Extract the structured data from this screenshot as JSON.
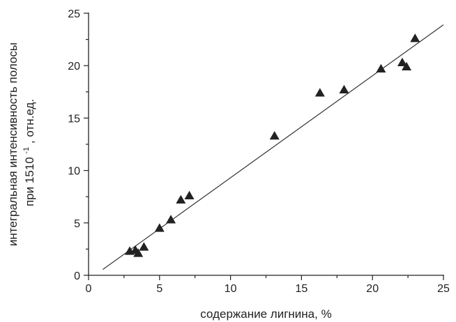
{
  "chart_data": {
    "type": "scatter",
    "xlabel": "содержание лигнина, %",
    "ylabel_line1": "интегральная интенсивность полосы",
    "ylabel_line2_prefix": "при 1510",
    "ylabel_line2_sup": "-1",
    "ylabel_line2_suffix": ", отн.ед.",
    "xlim": [
      0,
      25
    ],
    "ylim": [
      0,
      25
    ],
    "xticks": [
      "0",
      "5",
      "10",
      "15",
      "20",
      "25"
    ],
    "yticks": [
      "0",
      "5",
      "10",
      "15",
      "20",
      "25"
    ],
    "grid": false,
    "marker": "triangle",
    "marker_color": "#222222",
    "points": [
      {
        "x": 2.9,
        "y": 2.3
      },
      {
        "x": 3.3,
        "y": 2.4
      },
      {
        "x": 3.5,
        "y": 2.1
      },
      {
        "x": 3.9,
        "y": 2.7
      },
      {
        "x": 5.0,
        "y": 4.5
      },
      {
        "x": 5.8,
        "y": 5.3
      },
      {
        "x": 6.5,
        "y": 7.2
      },
      {
        "x": 7.1,
        "y": 7.6
      },
      {
        "x": 13.1,
        "y": 13.3
      },
      {
        "x": 16.3,
        "y": 17.4
      },
      {
        "x": 18.0,
        "y": 17.7
      },
      {
        "x": 20.6,
        "y": 19.7
      },
      {
        "x": 22.1,
        "y": 20.3
      },
      {
        "x": 22.4,
        "y": 19.9
      },
      {
        "x": 23.0,
        "y": 22.6
      }
    ],
    "fit_line": {
      "x1": 1.0,
      "y1": 0.55,
      "x2": 25.0,
      "y2": 23.9
    }
  }
}
